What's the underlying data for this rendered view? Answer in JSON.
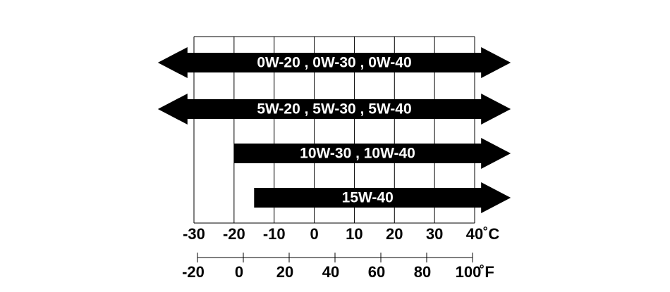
{
  "chart_data": {
    "type": "range-bar",
    "bars": [
      {
        "label": "0W-20 , 0W-30 , 0W-40",
        "from": -39,
        "to": 49,
        "arrow_left": true,
        "arrow_right": true
      },
      {
        "label": "5W-20 , 5W-30 , 5W-40",
        "from": -39,
        "to": 49,
        "arrow_left": true,
        "arrow_right": true
      },
      {
        "label": "10W-30 , 10W-40",
        "from": -20,
        "to": 49,
        "arrow_left": false,
        "arrow_right": true
      },
      {
        "label": "15W-40",
        "from": -15,
        "to": 49,
        "arrow_left": false,
        "arrow_right": true
      }
    ],
    "color": "#000000",
    "xlim": [
      -30,
      40
    ],
    "xticks": [
      -30,
      -20,
      -10,
      0,
      10,
      20,
      30,
      40
    ],
    "x_unit": "˚C",
    "x2lim": [
      -20,
      100
    ],
    "x2ticks": [
      -20,
      0,
      20,
      40,
      60,
      80,
      100
    ],
    "x2_unit": "˚F",
    "grid": true
  }
}
